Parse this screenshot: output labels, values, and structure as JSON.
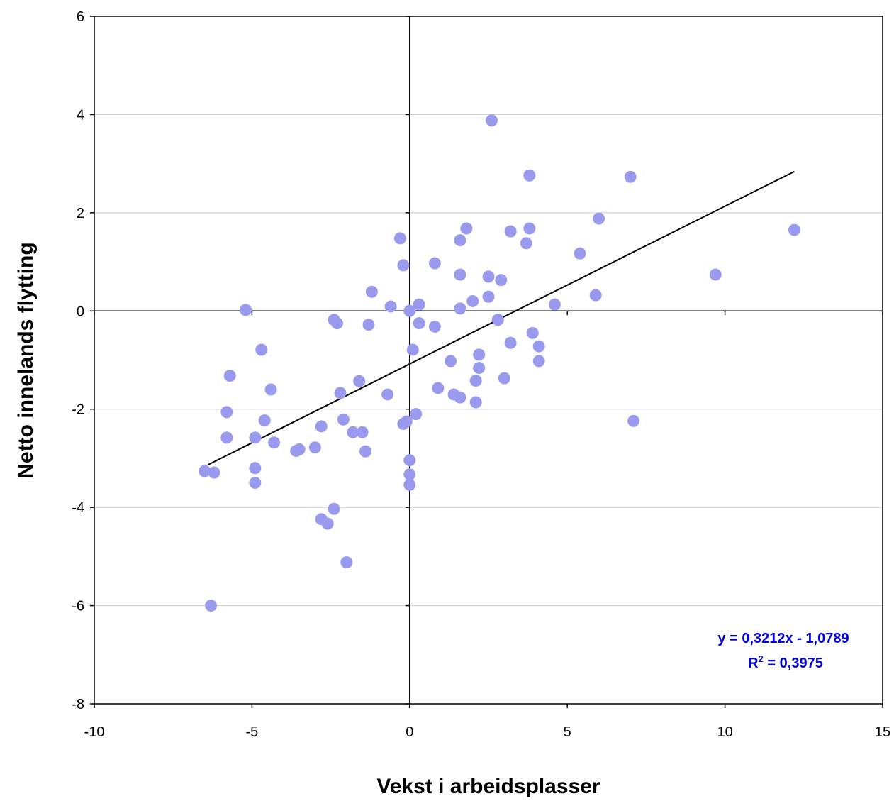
{
  "chart_data": {
    "type": "scatter",
    "title": "",
    "xlabel": "Vekst i arbeidsplasser",
    "ylabel": "Netto innelands flytting",
    "xlim": [
      -10,
      15
    ],
    "ylim": [
      -8,
      6
    ],
    "xticks": [
      -10,
      -5,
      0,
      5,
      10,
      15
    ],
    "yticks": [
      -8,
      -6,
      -4,
      -2,
      0,
      2,
      4,
      6
    ],
    "grid": "horizontal",
    "legend": "none",
    "colors": {
      "points": "#9999ee",
      "trendline": "#000000",
      "equation": "#0000dd",
      "grid": "#c8c8dc"
    },
    "points": [
      [
        2.6,
        3.88
      ],
      [
        3.8,
        2.76
      ],
      [
        7.0,
        2.73
      ],
      [
        6.0,
        1.88
      ],
      [
        12.2,
        1.65
      ],
      [
        -0.3,
        1.48
      ],
      [
        1.8,
        1.68
      ],
      [
        3.8,
        1.68
      ],
      [
        3.2,
        1.62
      ],
      [
        1.6,
        1.44
      ],
      [
        3.7,
        1.38
      ],
      [
        5.4,
        1.17
      ],
      [
        0.8,
        0.97
      ],
      [
        -0.2,
        0.93
      ],
      [
        9.7,
        0.74
      ],
      [
        1.6,
        0.74
      ],
      [
        2.5,
        0.7
      ],
      [
        2.9,
        0.63
      ],
      [
        -1.2,
        0.39
      ],
      [
        2.5,
        0.29
      ],
      [
        5.9,
        0.32
      ],
      [
        2.0,
        0.2
      ],
      [
        4.6,
        0.13
      ],
      [
        0.3,
        0.13
      ],
      [
        -0.6,
        0.09
      ],
      [
        1.6,
        0.05
      ],
      [
        -5.2,
        0.02
      ],
      [
        0.0,
        0.0
      ],
      [
        2.8,
        -0.18
      ],
      [
        -2.4,
        -0.18
      ],
      [
        -2.3,
        -0.25
      ],
      [
        0.3,
        -0.25
      ],
      [
        -1.3,
        -0.28
      ],
      [
        0.8,
        -0.32
      ],
      [
        3.9,
        -0.45
      ],
      [
        3.2,
        -0.65
      ],
      [
        4.1,
        -0.72
      ],
      [
        -4.7,
        -0.79
      ],
      [
        0.1,
        -0.79
      ],
      [
        2.2,
        -0.89
      ],
      [
        4.1,
        -1.02
      ],
      [
        1.3,
        -1.02
      ],
      [
        2.2,
        -1.16
      ],
      [
        -5.7,
        -1.32
      ],
      [
        3.0,
        -1.37
      ],
      [
        2.1,
        -1.42
      ],
      [
        -1.6,
        -1.43
      ],
      [
        0.9,
        -1.57
      ],
      [
        -4.4,
        -1.6
      ],
      [
        -2.2,
        -1.67
      ],
      [
        -0.7,
        -1.7
      ],
      [
        1.4,
        -1.7
      ],
      [
        1.6,
        -1.76
      ],
      [
        2.1,
        -1.86
      ],
      [
        -5.8,
        -2.06
      ],
      [
        0.2,
        -2.1
      ],
      [
        -2.1,
        -2.21
      ],
      [
        -4.6,
        -2.23
      ],
      [
        7.1,
        -2.24
      ],
      [
        -0.1,
        -2.25
      ],
      [
        -0.2,
        -2.3
      ],
      [
        -2.8,
        -2.35
      ],
      [
        -1.8,
        -2.47
      ],
      [
        -1.5,
        -2.47
      ],
      [
        -4.9,
        -2.58
      ],
      [
        -5.8,
        -2.58
      ],
      [
        -4.3,
        -2.68
      ],
      [
        -3.0,
        -2.78
      ],
      [
        -3.5,
        -2.82
      ],
      [
        -3.6,
        -2.85
      ],
      [
        -1.4,
        -2.86
      ],
      [
        0.0,
        -3.04
      ],
      [
        -4.9,
        -3.2
      ],
      [
        -6.5,
        -3.26
      ],
      [
        -6.2,
        -3.29
      ],
      [
        0.0,
        -3.33
      ],
      [
        -4.9,
        -3.5
      ],
      [
        0.0,
        -3.54
      ],
      [
        -2.4,
        -4.03
      ],
      [
        -2.8,
        -4.24
      ],
      [
        -2.6,
        -4.33
      ],
      [
        -2.0,
        -5.12
      ],
      [
        -6.3,
        -6.0
      ]
    ],
    "trendline": {
      "slope": 0.3212,
      "intercept": -1.0789,
      "x_range": [
        -6.4,
        12.2
      ]
    },
    "annotations": {
      "equation": "y = 0,3212x - 1,0789",
      "r2_prefix": "R",
      "r2_sup": "2",
      "r2_value": " = 0,3975"
    }
  }
}
